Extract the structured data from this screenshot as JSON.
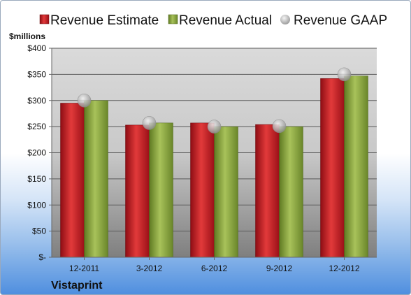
{
  "chart_data": {
    "type": "bar",
    "categories": [
      "12-2011",
      "3-2012",
      "6-2012",
      "9-2012",
      "12-2012"
    ],
    "series": [
      {
        "name": "Revenue Estimate",
        "kind": "bar",
        "color": "#c8102e",
        "values": [
          295,
          253,
          257,
          254,
          342
        ]
      },
      {
        "name": "Revenue Actual",
        "kind": "bar",
        "color": "#8ca83a",
        "values": [
          300,
          257,
          250,
          250,
          347
        ]
      },
      {
        "name": "Revenue GAAP",
        "kind": "marker",
        "color": "#b8b8b8",
        "values": [
          300,
          257,
          250,
          251,
          350
        ]
      }
    ],
    "units_label": "$millions",
    "yticks": [
      "$-",
      "$50",
      "$100",
      "$150",
      "$200",
      "$250",
      "$300",
      "$350",
      "$400"
    ],
    "ylim": [
      0,
      400
    ],
    "grid": true,
    "legend_position": "top",
    "company": "Vistaprint"
  }
}
